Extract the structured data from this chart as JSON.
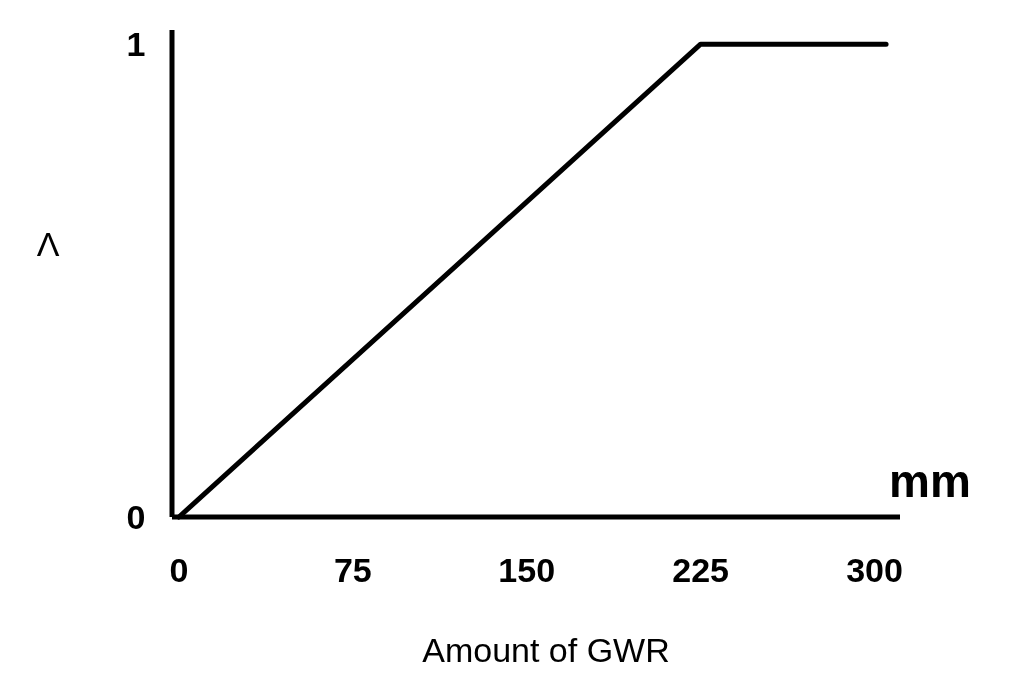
{
  "chart_data": {
    "type": "line",
    "xlabel": "Amount of GWR",
    "ylabel": "Λ",
    "annotations": [
      "mm"
    ],
    "x": [
      0,
      225,
      305
    ],
    "series": [
      {
        "color": "#000000",
        "values": [
          0,
          1,
          1
        ]
      }
    ],
    "xlim": [
      -3,
      311
    ],
    "ylim": [
      0,
      1.03
    ],
    "xticks": [
      0,
      75,
      150,
      225,
      300
    ],
    "yticks": [
      0,
      1
    ],
    "grid": false,
    "marker": "none",
    "line_style": "solid"
  }
}
